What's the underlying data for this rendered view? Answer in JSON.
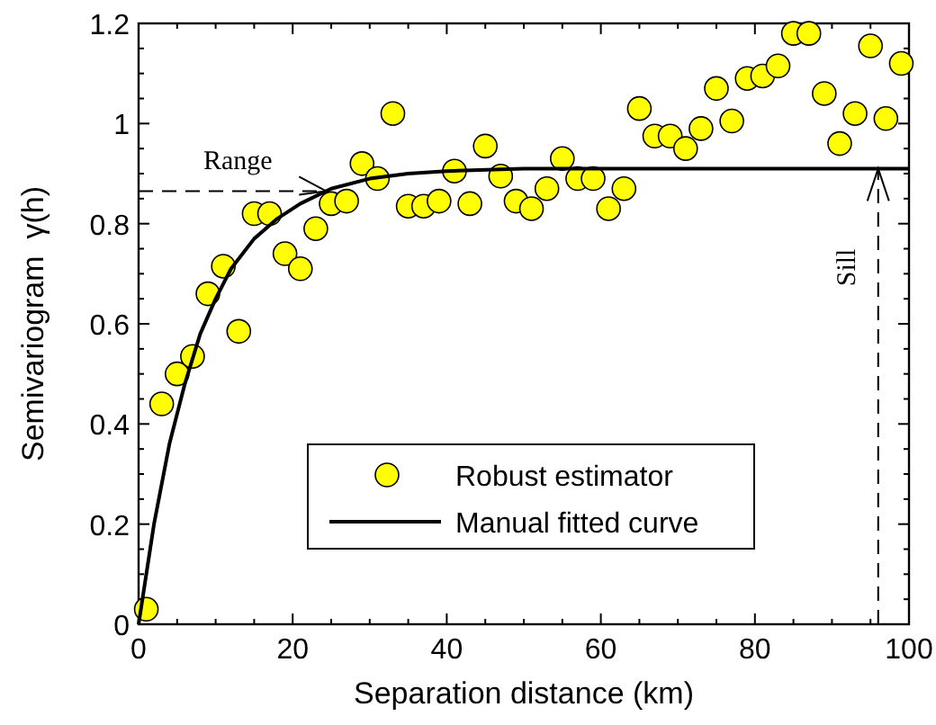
{
  "chart_data": {
    "type": "scatter",
    "xlabel": "Separation distance (km)",
    "ylabel": "Semivariogram  γ(h)",
    "xlim": [
      0,
      100
    ],
    "xticks": [
      0,
      20,
      40,
      60,
      80,
      100
    ],
    "ylim": [
      0,
      1.2
    ],
    "yticks": [
      0,
      0.2,
      0.4,
      0.6,
      0.8,
      1,
      1.2
    ],
    "grid": false,
    "legend": "bottom",
    "marker": "circle",
    "series": [
      {
        "name": "Robust estimator",
        "color": "#ffff00",
        "x": [
          1,
          3,
          5,
          7,
          9,
          11,
          13,
          15,
          17,
          19,
          21,
          23,
          25,
          27,
          29,
          31,
          33,
          35,
          37,
          39,
          41,
          43,
          45,
          47,
          49,
          51,
          53,
          55,
          57,
          59,
          61,
          63,
          65,
          67,
          69,
          71,
          73,
          75,
          77,
          79,
          81,
          83,
          85,
          87,
          89,
          91,
          93,
          95,
          97,
          99
        ],
        "values": [
          0.03,
          0.44,
          0.5,
          0.535,
          0.66,
          0.715,
          0.585,
          0.82,
          0.82,
          0.74,
          0.71,
          0.79,
          0.84,
          0.845,
          0.92,
          0.89,
          1.02,
          0.835,
          0.835,
          0.845,
          0.905,
          0.84,
          0.955,
          0.895,
          0.845,
          0.83,
          0.87,
          0.93,
          0.89,
          0.89,
          0.83,
          0.87,
          1.03,
          0.975,
          0.975,
          0.95,
          0.99,
          1.07,
          1.005,
          1.09,
          1.095,
          1.115,
          1.18,
          1.18,
          1.06,
          0.96,
          1.02,
          1.155,
          1.01,
          1.12
        ]
      },
      {
        "name": "Manual fitted curve",
        "type": "line",
        "color": "#000000",
        "line_style": "solid",
        "marker": "none",
        "x": [
          0,
          2,
          4,
          6,
          8,
          10,
          12,
          15,
          18,
          21,
          25,
          30,
          35,
          40,
          50,
          60,
          80,
          100
        ],
        "values": [
          0,
          0.2,
          0.36,
          0.48,
          0.58,
          0.65,
          0.71,
          0.77,
          0.81,
          0.84,
          0.87,
          0.89,
          0.9,
          0.905,
          0.91,
          0.91,
          0.91,
          0.91
        ]
      }
    ],
    "ref_lines": [
      {
        "axis": "y",
        "value": 0.865,
        "label": "Range",
        "line_style": "dashed",
        "color": "#000000"
      },
      {
        "axis": "x",
        "value": 96,
        "label": "Sill",
        "line_style": "dashed",
        "color": "#000000"
      }
    ]
  }
}
